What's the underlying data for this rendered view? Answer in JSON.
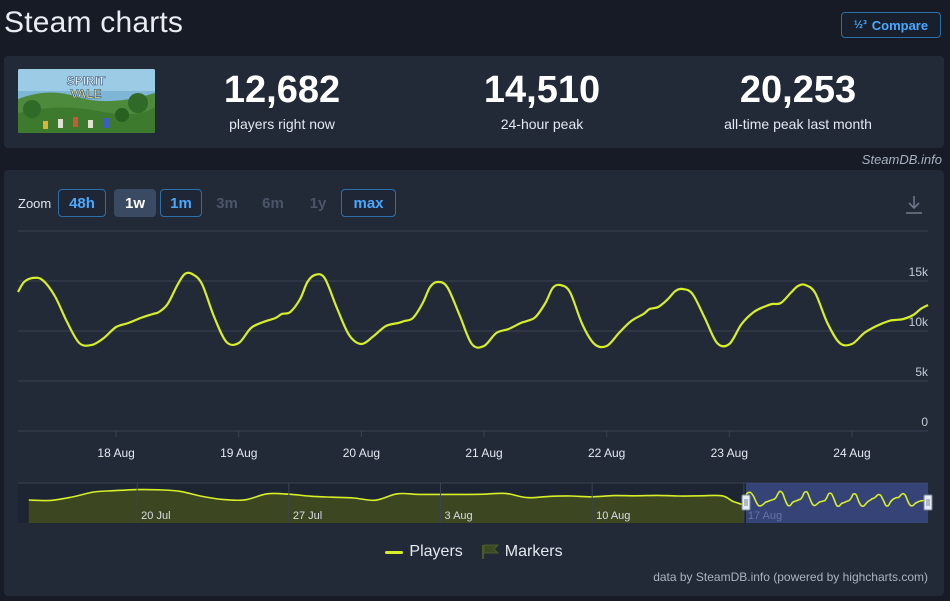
{
  "header": {
    "title": "Steam charts",
    "compare_label": "Compare",
    "compare_icon": "½³"
  },
  "stats": [
    {
      "value": "12,682",
      "label": "players right now"
    },
    {
      "value": "14,510",
      "label": "24-hour peak"
    },
    {
      "value": "20,253",
      "label": "all-time peak last month"
    }
  ],
  "thumbnail": {
    "title_text": "SPIRIT VALE"
  },
  "credit_top": "SteamDB.info",
  "zoom": {
    "label": "Zoom",
    "buttons": [
      {
        "label": "48h",
        "state": "active"
      },
      {
        "label": "1w",
        "state": "selected"
      },
      {
        "label": "1m",
        "state": "active"
      },
      {
        "label": "3m",
        "state": "disabled"
      },
      {
        "label": "6m",
        "state": "disabled"
      },
      {
        "label": "1y",
        "state": "disabled"
      },
      {
        "label": "max",
        "state": "active"
      }
    ]
  },
  "legend": {
    "players": "Players",
    "markers": "Markers"
  },
  "credit_bottom": "data by SteamDB.info (powered by highcharts.com)",
  "colors": {
    "line": "#d6ef28",
    "navigator_fill": "#3c4722",
    "navigator_selection": "#3d4d8f"
  },
  "chart_data": {
    "type": "line",
    "series": [
      {
        "name": "Players",
        "x": [
          17.2,
          17.25,
          17.32,
          17.4,
          17.5,
          17.6,
          17.7,
          17.8,
          17.9,
          18.0,
          18.1,
          18.2,
          18.3,
          18.35,
          18.42,
          18.5,
          18.56,
          18.62,
          18.7,
          18.8,
          18.9,
          19.0,
          19.1,
          19.2,
          19.3,
          19.35,
          19.42,
          19.5,
          19.56,
          19.62,
          19.7,
          19.8,
          19.9,
          20.0,
          20.1,
          20.2,
          20.3,
          20.35,
          20.42,
          20.5,
          20.56,
          20.62,
          20.7,
          20.8,
          20.9,
          21.0,
          21.1,
          21.2,
          21.3,
          21.35,
          21.42,
          21.5,
          21.56,
          21.62,
          21.7,
          21.8,
          21.9,
          22.0,
          22.1,
          22.2,
          22.3,
          22.35,
          22.42,
          22.5,
          22.56,
          22.62,
          22.7,
          22.8,
          22.9,
          23.0,
          23.1,
          23.2,
          23.3,
          23.35,
          23.42,
          23.5,
          23.56,
          23.62,
          23.7,
          23.8,
          23.9,
          24.0,
          24.1,
          24.2,
          24.3,
          24.35,
          24.42,
          24.5,
          24.56,
          24.62
        ],
        "values": [
          13900,
          14900,
          15300,
          15100,
          13500,
          10900,
          8800,
          8600,
          9300,
          10400,
          10800,
          11300,
          11700,
          11900,
          12700,
          14600,
          15700,
          15700,
          14700,
          11400,
          8900,
          8800,
          10300,
          10900,
          11300,
          11700,
          11900,
          13200,
          14900,
          15600,
          15300,
          12300,
          9600,
          8700,
          9500,
          10500,
          10800,
          11000,
          11300,
          12800,
          14400,
          14900,
          14400,
          11600,
          8700,
          8500,
          9800,
          10200,
          10800,
          11000,
          11400,
          12800,
          14300,
          14600,
          13900,
          10700,
          8700,
          8500,
          9800,
          11000,
          11700,
          12200,
          12400,
          13200,
          14000,
          14200,
          13700,
          11300,
          8800,
          8700,
          10700,
          11900,
          12500,
          12700,
          12800,
          13800,
          14500,
          14600,
          13800,
          10800,
          8800,
          8700,
          9800,
          10500,
          11000,
          11100,
          11200,
          11600,
          12200,
          12600
        ]
      }
    ],
    "x_ticks": [
      {
        "value": 18,
        "label": "18 Aug"
      },
      {
        "value": 19,
        "label": "19 Aug"
      },
      {
        "value": 20,
        "label": "20 Aug"
      },
      {
        "value": 21,
        "label": "21 Aug"
      },
      {
        "value": 22,
        "label": "22 Aug"
      },
      {
        "value": 23,
        "label": "23 Aug"
      },
      {
        "value": 24,
        "label": "24 Aug"
      }
    ],
    "y_ticks": [
      {
        "value": 0,
        "label": "0"
      },
      {
        "value": 5000,
        "label": "5k"
      },
      {
        "value": 10000,
        "label": "10k"
      },
      {
        "value": 15000,
        "label": "15k"
      }
    ],
    "xlim": [
      17.2,
      24.62
    ],
    "ylim": [
      0,
      20000
    ],
    "grid": true,
    "navigator": {
      "ticks": [
        {
          "value": 0,
          "label": "20 Jul"
        },
        {
          "value": 7,
          "label": "27 Jul"
        },
        {
          "value": 14,
          "label": "3 Aug"
        },
        {
          "value": 21,
          "label": "10 Aug"
        },
        {
          "value": 28,
          "label": "17 Aug"
        }
      ],
      "x": [
        -5,
        -4,
        -3,
        -2,
        -1,
        0,
        1,
        2,
        3,
        4,
        5,
        6,
        7,
        8,
        9,
        10,
        11,
        12,
        13,
        14,
        15,
        16,
        17,
        18,
        19,
        20,
        21,
        22,
        23,
        24,
        25,
        26,
        27,
        27.5,
        28
      ],
      "values": [
        11500,
        11300,
        13000,
        15500,
        16200,
        16700,
        16600,
        15800,
        13300,
        11700,
        11600,
        14600,
        14400,
        13400,
        12900,
        12500,
        11400,
        14600,
        14300,
        14300,
        14300,
        14400,
        14800,
        12700,
        13300,
        13500,
        13100,
        13700,
        13600,
        13800,
        13500,
        13600,
        13600,
        10800,
        9000
      ],
      "xlim": [
        -5.5,
        36.5
      ],
      "ylim": [
        0,
        20000
      ],
      "selection": [
        28.1,
        36.5
      ]
    }
  }
}
